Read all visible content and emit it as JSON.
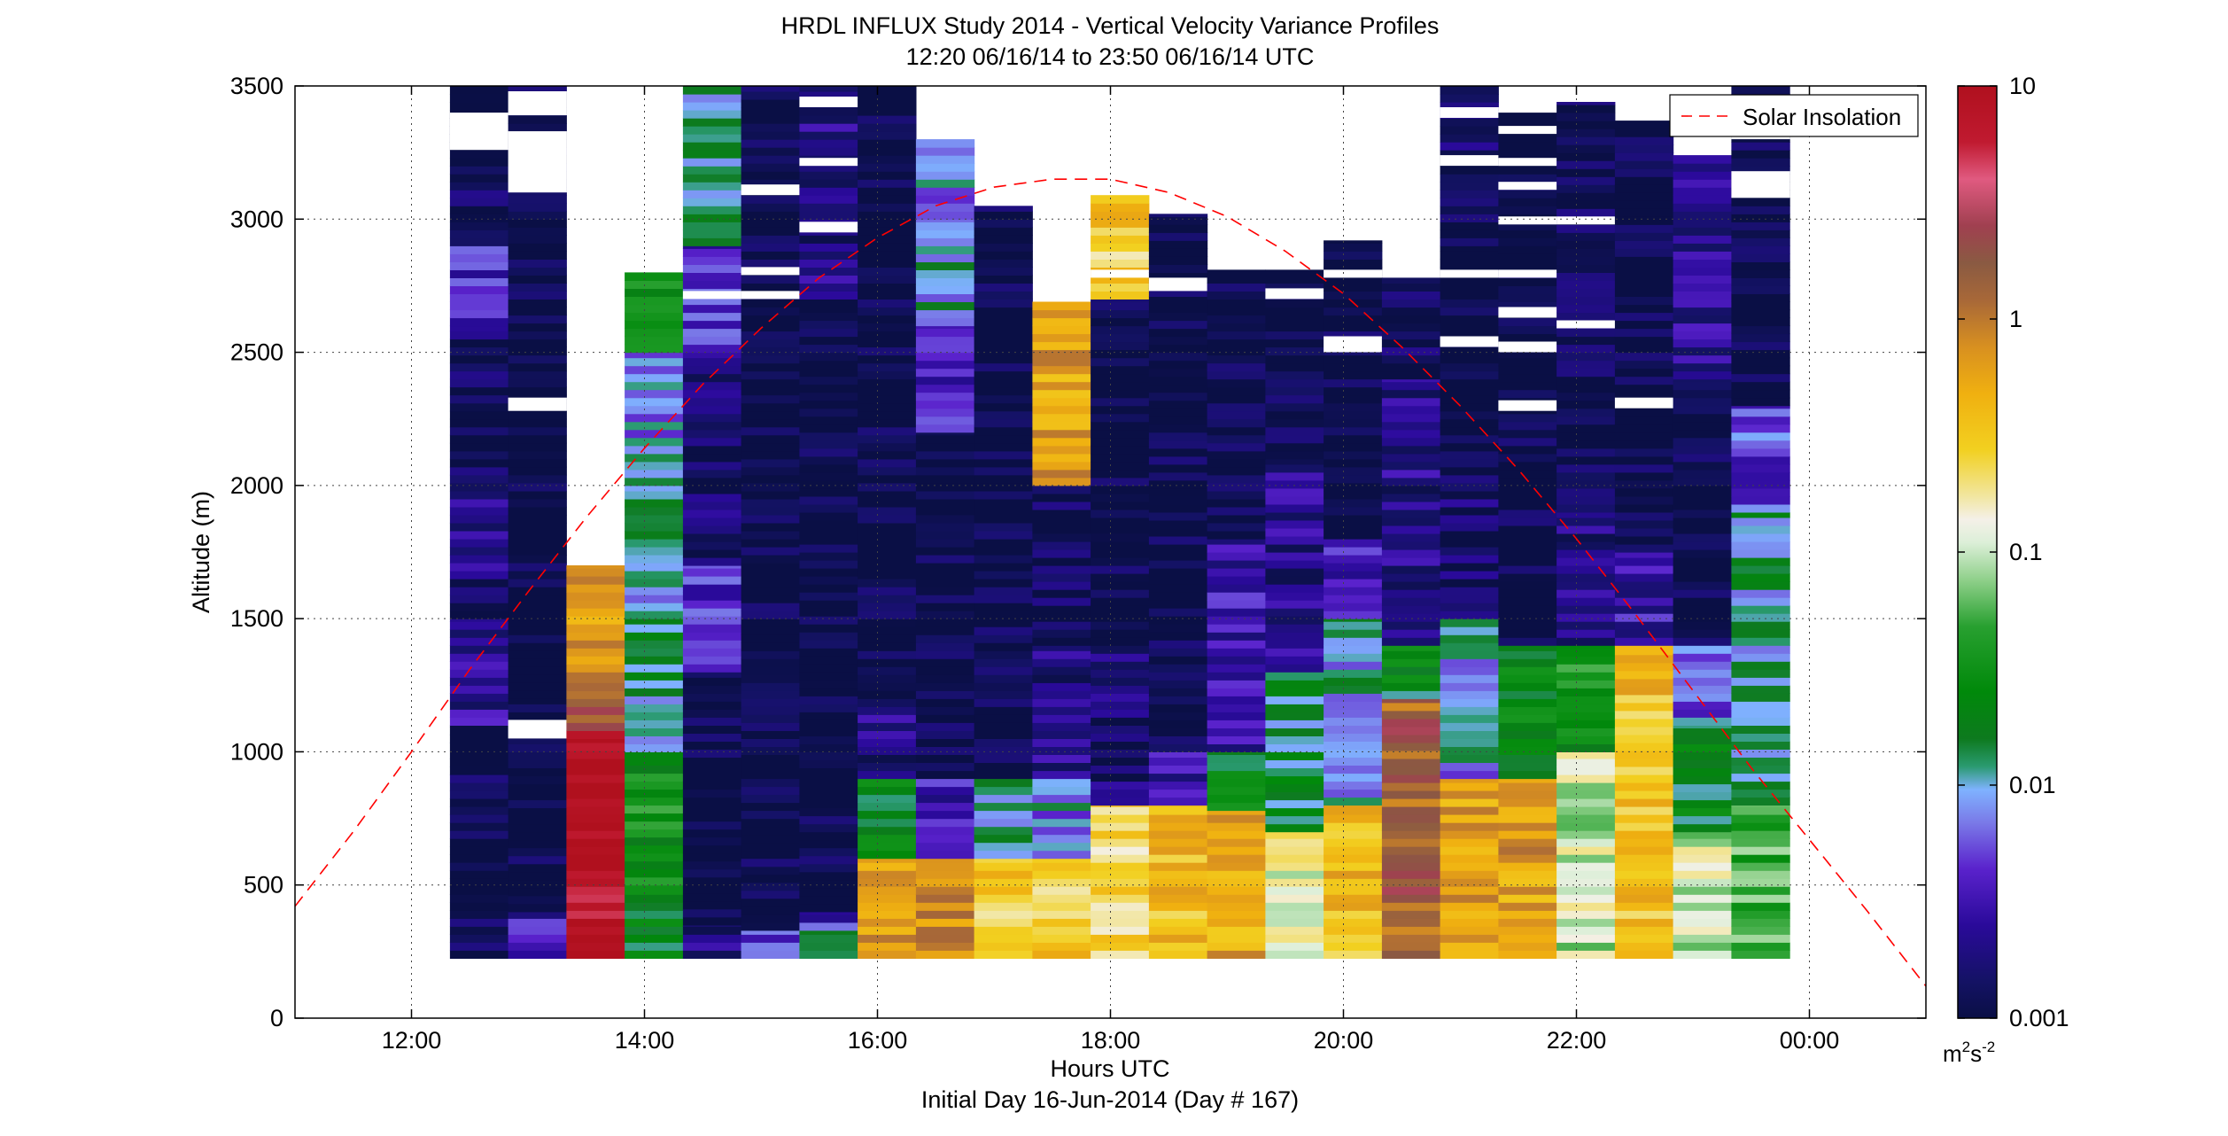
{
  "chart_data": {
    "type": "heatmap",
    "title": "HRDL INFLUX Study 2014 - Vertical Velocity Variance Profiles",
    "subtitle": "12:20 06/16/14 to 23:50 06/16/14  UTC",
    "xlabel": "Hours UTC",
    "xlabel2": "Initial Day 16-Jun-2014 (Day # 167)",
    "ylabel": "Altitude (m)",
    "xlim": [
      11,
      25
    ],
    "ylim": [
      0,
      3500
    ],
    "x_ticks": [
      12,
      14,
      16,
      18,
      20,
      22,
      24
    ],
    "x_tick_labels": [
      "12:00",
      "14:00",
      "16:00",
      "18:00",
      "20:00",
      "22:00",
      "00:00"
    ],
    "y_ticks": [
      0,
      500,
      1000,
      1500,
      2000,
      2500,
      3000,
      3500
    ],
    "y_tick_labels": [
      "0",
      "500",
      "1000",
      "1500",
      "2000",
      "2500",
      "3000",
      "3500"
    ],
    "grid": true,
    "legend": {
      "entries": [
        "Solar Insolation"
      ],
      "placement": "top-right"
    },
    "colorbar": {
      "scale": "log",
      "range": [
        0.001,
        10
      ],
      "ticks": [
        0.001,
        0.01,
        0.1,
        1,
        10
      ],
      "tick_labels": [
        "0.001",
        "0.01",
        "0.1",
        "1",
        "10"
      ],
      "units_base": "m",
      "units_sup1": "2",
      "units_mid": "s",
      "units_sup2": "-2",
      "units": "m²s⁻²"
    },
    "bin_width_hours": 0.5,
    "profiles": [
      {
        "time": 12.58,
        "top": 3500,
        "segments": [
          [
            225,
            1100,
            0.0011
          ],
          [
            1100,
            1500,
            0.0025
          ],
          [
            1500,
            2100,
            0.0018
          ],
          [
            2100,
            2600,
            0.0013
          ],
          [
            2600,
            2900,
            0.004
          ],
          [
            2900,
            3500,
            0.0012
          ]
        ],
        "gaps": [
          3260,
          3400
        ]
      },
      {
        "time": 13.08,
        "top": 3500,
        "segments": [
          [
            225,
            400,
            0.003
          ],
          [
            400,
            1200,
            0.0011
          ],
          [
            1200,
            3500,
            0.001
          ]
        ],
        "gaps": [
          1050,
          1120,
          2280,
          2330,
          3100,
          3330,
          3390,
          3480
        ]
      },
      {
        "time": 13.58,
        "top": 1700,
        "segments": [
          [
            225,
            1050,
            9.0
          ],
          [
            1050,
            1080,
            5.0
          ],
          [
            1080,
            1300,
            1.5
          ],
          [
            1300,
            1700,
            0.6
          ]
        ],
        "gaps": []
      },
      {
        "time": 14.08,
        "top": 2800,
        "segments": [
          [
            225,
            500,
            0.02
          ],
          [
            500,
            1000,
            0.03
          ],
          [
            1000,
            1500,
            0.012
          ],
          [
            1500,
            2000,
            0.01
          ],
          [
            2000,
            2500,
            0.008
          ],
          [
            2500,
            2800,
            0.03
          ]
        ],
        "gaps": [
          3440,
          3470
        ]
      },
      {
        "time": 14.58,
        "top": 3500,
        "segments": [
          [
            225,
            350,
            0.002
          ],
          [
            350,
            1300,
            0.001
          ],
          [
            1300,
            1700,
            0.004
          ],
          [
            1700,
            2500,
            0.0015
          ],
          [
            2500,
            2900,
            0.004
          ],
          [
            2900,
            3500,
            0.01
          ]
        ],
        "gaps": [
          2700,
          2730
        ]
      },
      {
        "time": 15.08,
        "top": 3500,
        "segments": [
          [
            225,
            330,
            0.005
          ],
          [
            330,
            3500,
            0.001
          ]
        ],
        "gaps": [
          2700,
          2730,
          2790,
          2820,
          3090,
          3130
        ]
      },
      {
        "time": 15.58,
        "top": 3500,
        "segments": [
          [
            225,
            330,
            0.01
          ],
          [
            330,
            400,
            0.004
          ],
          [
            400,
            2700,
            0.001
          ],
          [
            2700,
            3500,
            0.002
          ]
        ],
        "gaps": [
          2950,
          2990,
          3200,
          3230,
          3420,
          3460
        ]
      },
      {
        "time": 16.08,
        "top": 3500,
        "segments": [
          [
            225,
            600,
            0.6
          ],
          [
            600,
            900,
            0.02
          ],
          [
            900,
            1200,
            0.002
          ],
          [
            1200,
            3500,
            0.001
          ]
        ],
        "gaps": []
      },
      {
        "time": 16.58,
        "top": 3300,
        "segments": [
          [
            225,
            600,
            0.7
          ],
          [
            600,
            900,
            0.003
          ],
          [
            900,
            2200,
            0.001
          ],
          [
            2200,
            2600,
            0.004
          ],
          [
            2600,
            3000,
            0.01
          ],
          [
            3000,
            3300,
            0.008
          ]
        ],
        "gaps": []
      },
      {
        "time": 17.08,
        "top": 3050,
        "segments": [
          [
            225,
            600,
            0.3
          ],
          [
            600,
            900,
            0.01
          ],
          [
            900,
            3050,
            0.001
          ]
        ],
        "gaps": []
      },
      {
        "time": 17.58,
        "top": 2690,
        "segments": [
          [
            225,
            600,
            0.3
          ],
          [
            600,
            900,
            0.008
          ],
          [
            900,
            1400,
            0.002
          ],
          [
            1400,
            2000,
            0.0012
          ],
          [
            2000,
            2690,
            0.6
          ]
        ],
        "gaps": []
      },
      {
        "time": 18.08,
        "top": 3090,
        "segments": [
          [
            225,
            800,
            0.25
          ],
          [
            800,
            1400,
            0.0015
          ],
          [
            1400,
            2700,
            0.001
          ],
          [
            2700,
            3090,
            0.3
          ]
        ],
        "gaps": [
          2780,
          2810
        ]
      },
      {
        "time": 18.58,
        "top": 3020,
        "segments": [
          [
            225,
            800,
            0.4
          ],
          [
            800,
            1000,
            0.003
          ],
          [
            1000,
            3020,
            0.001
          ]
        ],
        "gaps": [
          2730,
          2780
        ]
      },
      {
        "time": 19.08,
        "top": 2810,
        "segments": [
          [
            225,
            780,
            0.5
          ],
          [
            780,
            1000,
            0.02
          ],
          [
            1000,
            1800,
            0.003
          ],
          [
            1800,
            2810,
            0.001
          ]
        ],
        "gaps": []
      },
      {
        "time": 19.58,
        "top": 2810,
        "segments": [
          [
            225,
            700,
            0.15
          ],
          [
            700,
            1300,
            0.015
          ],
          [
            1300,
            2100,
            0.002
          ],
          [
            2100,
            2810,
            0.001
          ]
        ],
        "gaps": [
          2700,
          2740
        ]
      },
      {
        "time": 20.08,
        "top": 2920,
        "segments": [
          [
            225,
            800,
            0.4
          ],
          [
            800,
            1500,
            0.01
          ],
          [
            1500,
            1800,
            0.003
          ],
          [
            1800,
            2920,
            0.001
          ]
        ],
        "gaps": [
          2500,
          2560,
          2780,
          2810
        ]
      },
      {
        "time": 20.58,
        "top": 2780,
        "segments": [
          [
            225,
            1200,
            1.5
          ],
          [
            1200,
            1400,
            0.02
          ],
          [
            1400,
            2400,
            0.002
          ],
          [
            2400,
            2780,
            0.0012
          ]
        ],
        "gaps": []
      },
      {
        "time": 21.08,
        "top": 3500,
        "segments": [
          [
            225,
            900,
            0.6
          ],
          [
            900,
            1500,
            0.008
          ],
          [
            1500,
            2100,
            0.0015
          ],
          [
            2100,
            2900,
            0.001
          ],
          [
            2900,
            3500,
            0.0015
          ]
        ],
        "gaps": [
          2520,
          2560,
          2780,
          2810,
          3200,
          3240,
          3380,
          3420
        ]
      },
      {
        "time": 21.58,
        "top": 3400,
        "segments": [
          [
            225,
            900,
            0.6
          ],
          [
            900,
            1400,
            0.02
          ],
          [
            1400,
            3400,
            0.001
          ]
        ],
        "gaps": [
          2280,
          2320,
          2500,
          2540,
          2630,
          2670,
          2780,
          2810,
          2980,
          3010,
          3110,
          3140,
          3200,
          3230,
          3320,
          3350
        ]
      },
      {
        "time": 22.08,
        "top": 3440,
        "segments": [
          [
            225,
            1000,
            0.1
          ],
          [
            1000,
            1400,
            0.03
          ],
          [
            1400,
            1900,
            0.002
          ],
          [
            1900,
            3440,
            0.0012
          ]
        ],
        "gaps": [
          2590,
          2620,
          2980,
          3010
        ]
      },
      {
        "time": 22.58,
        "top": 3370,
        "segments": [
          [
            225,
            1400,
            0.35
          ],
          [
            1400,
            1750,
            0.003
          ],
          [
            1750,
            3370,
            0.001
          ]
        ],
        "gaps": [
          2290,
          2330
        ]
      },
      {
        "time": 23.08,
        "top": 3240,
        "segments": [
          [
            225,
            700,
            0.1
          ],
          [
            700,
            1100,
            0.02
          ],
          [
            1100,
            1400,
            0.006
          ],
          [
            1400,
            2400,
            0.001
          ],
          [
            2400,
            3240,
            0.0025
          ]
        ],
        "gaps": []
      },
      {
        "time": 23.58,
        "top": 3500,
        "segments": [
          [
            225,
            800,
            0.05
          ],
          [
            800,
            1900,
            0.012
          ],
          [
            1900,
            2300,
            0.005
          ],
          [
            2300,
            3500,
            0.001
          ]
        ],
        "gaps": [
          3080,
          3180,
          3300,
          3460
        ]
      }
    ],
    "solar_insolation": {
      "name": "Solar Insolation",
      "color": "#ff0000",
      "style": "dashed",
      "x": [
        11.0,
        11.5,
        12.0,
        12.5,
        13.0,
        13.5,
        14.0,
        14.5,
        15.0,
        15.5,
        16.0,
        16.5,
        17.0,
        17.5,
        18.0,
        18.5,
        19.0,
        19.5,
        20.0,
        20.5,
        21.0,
        21.5,
        22.0,
        22.5,
        23.0,
        23.5,
        24.0,
        24.5,
        25.0
      ],
      "y": [
        420,
        700,
        1000,
        1310,
        1600,
        1880,
        2140,
        2380,
        2590,
        2780,
        2930,
        3050,
        3120,
        3150,
        3150,
        3100,
        3010,
        2880,
        2720,
        2520,
        2300,
        2060,
        1800,
        1520,
        1230,
        940,
        670,
        400,
        120
      ]
    }
  }
}
